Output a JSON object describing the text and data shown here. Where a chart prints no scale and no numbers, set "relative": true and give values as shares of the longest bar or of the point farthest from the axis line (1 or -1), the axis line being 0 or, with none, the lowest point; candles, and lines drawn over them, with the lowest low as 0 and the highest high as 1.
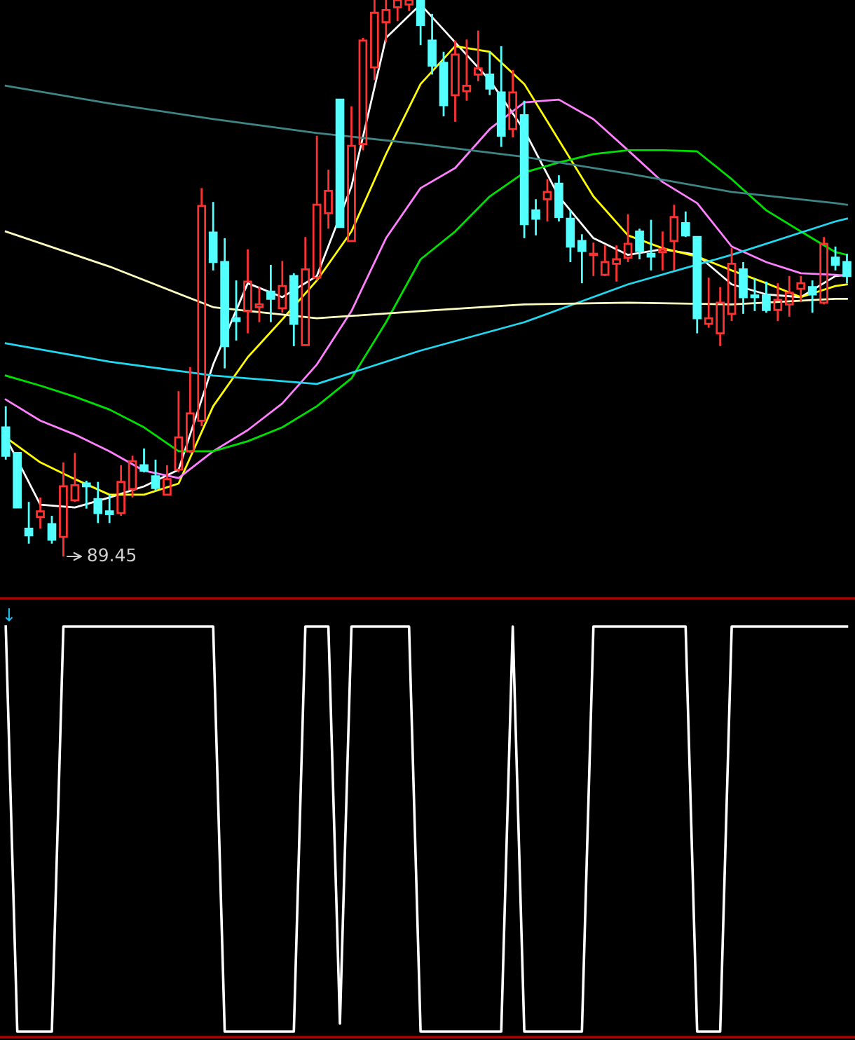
{
  "chart_data": [
    {
      "type": "candlestick",
      "relative": true,
      "categories": [
        null,
        null,
        null,
        null,
        null,
        null,
        null,
        null,
        null,
        null,
        null,
        null,
        null,
        null,
        null,
        null,
        null,
        null,
        null,
        null,
        null,
        null,
        null,
        null,
        null,
        null,
        null,
        null,
        null,
        null,
        null,
        null,
        null,
        null,
        null,
        null,
        null,
        null,
        null,
        null,
        null,
        null,
        null,
        null,
        null,
        null,
        null,
        null,
        null,
        null,
        null,
        null,
        null,
        null,
        null,
        null,
        null,
        null,
        null,
        null,
        null,
        null,
        null,
        null,
        null,
        null,
        null,
        null,
        null,
        null,
        null,
        null,
        null,
        null
      ],
      "ohlc": [
        [
          0.232,
          0.27,
          0.174,
          0.181
        ],
        [
          0.186,
          0.186,
          0.088,
          0.088
        ],
        [
          0.05,
          0.098,
          0.023,
          0.038
        ],
        [
          0.071,
          0.106,
          0.05,
          0.081
        ],
        [
          0.058,
          0.073,
          0.023,
          0.03
        ],
        [
          0.035,
          0.169,
          0,
          0.126
        ],
        [
          0.101,
          0.186,
          0.098,
          0.128
        ],
        [
          0.131,
          0.136,
          0.086,
          0.126
        ],
        [
          0.103,
          0.134,
          0.06,
          0.078
        ],
        [
          0.081,
          0.111,
          0.06,
          0.076
        ],
        [
          0.078,
          0.164,
          0.073,
          0.134
        ],
        [
          0.121,
          0.181,
          0.106,
          0.171
        ],
        [
          0.164,
          0.194,
          0.151,
          0.154
        ],
        [
          0.144,
          0.174,
          0.118,
          0.123
        ],
        [
          0.111,
          0.164,
          0.111,
          0.139
        ],
        [
          0.156,
          0.297,
          0.151,
          0.214
        ],
        [
          0.189,
          0.34,
          0.186,
          0.257
        ],
        [
          0.244,
          0.662,
          0.234,
          0.63
        ],
        [
          0.582,
          0.637,
          0.514,
          0.529
        ],
        [
          0.529,
          0.572,
          0.338,
          0.378
        ],
        [
          0.428,
          0.496,
          0.388,
          0.423
        ],
        [
          0.441,
          0.552,
          0.401,
          0.494
        ],
        [
          0.448,
          0.484,
          0.421,
          0.453
        ],
        [
          0.476,
          0.524,
          0.421,
          0.463
        ],
        [
          0.446,
          0.531,
          0.438,
          0.486
        ],
        [
          0.504,
          0.509,
          0.378,
          0.418
        ],
        [
          0.38,
          0.574,
          0.38,
          0.516
        ],
        [
          0.501,
          0.756,
          0.496,
          0.632
        ],
        [
          0.617,
          0.695,
          0.589,
          0.657
        ],
        [
          0.821,
          0.821,
          0.592,
          0.592
        ],
        [
          0.567,
          0.809,
          0.567,
          0.738
        ],
        [
          0.741,
          0.932,
          0.73,
          0.927
        ],
        [
          0.879,
          1,
          0.856,
          0.977
        ],
        [
          0.96,
          1,
          0.924,
          0.982
        ],
        [
          0.987,
          1,
          0.962,
          1
        ],
        [
          0.992,
          1,
          0.98,
          1
        ],
        [
          1,
          1,
          0.919,
          0.955
        ],
        [
          0.927,
          0.975,
          0.866,
          0.882
        ],
        [
          0.887,
          0.907,
          0.791,
          0.811
        ],
        [
          0.829,
          0.927,
          0.781,
          0.902
        ],
        [
          0.836,
          0.929,
          0.819,
          0.846
        ],
        [
          0.866,
          0.945,
          0.854,
          0.877
        ],
        [
          0.866,
          0.907,
          0.829,
          0.841
        ],
        [
          0.834,
          0.917,
          0.736,
          0.756
        ],
        [
          0.768,
          0.874,
          0.753,
          0.834
        ],
        [
          0.793,
          0.819,
          0.572,
          0.597
        ],
        [
          0.622,
          0.642,
          0.577,
          0.607
        ],
        [
          0.642,
          0.678,
          0.602,
          0.655
        ],
        [
          0.67,
          0.685,
          0.602,
          0.61
        ],
        [
          0.607,
          0.622,
          0.529,
          0.557
        ],
        [
          0.567,
          0.579,
          0.491,
          0.549
        ],
        [
          0.542,
          0.564,
          0.504,
          0.544
        ],
        [
          0.506,
          0.559,
          0.504,
          0.529
        ],
        [
          0.526,
          0.559,
          0.494,
          0.534
        ],
        [
          0.537,
          0.615,
          0.529,
          0.562
        ],
        [
          0.584,
          0.589,
          0.534,
          0.549
        ],
        [
          0.544,
          0.605,
          0.514,
          0.539
        ],
        [
          0.547,
          0.584,
          0.514,
          0.552
        ],
        [
          0.567,
          0.632,
          0.514,
          0.61
        ],
        [
          0.599,
          0.62,
          0.574,
          0.577
        ],
        [
          0.574,
          0.574,
          0.401,
          0.428
        ],
        [
          0.418,
          0.501,
          0.411,
          0.428
        ],
        [
          0.401,
          0.484,
          0.378,
          0.456
        ],
        [
          0.436,
          0.554,
          0.423,
          0.526
        ],
        [
          0.516,
          0.529,
          0.436,
          0.466
        ],
        [
          0.469,
          0.499,
          0.441,
          0.466
        ],
        [
          0.469,
          0.494,
          0.438,
          0.443
        ],
        [
          0.443,
          0.491,
          0.423,
          0.461
        ],
        [
          0.453,
          0.504,
          0.431,
          0.474
        ],
        [
          0.481,
          0.504,
          0.458,
          0.491
        ],
        [
          0.484,
          0.496,
          0.438,
          0.471
        ],
        [
          0.456,
          0.574,
          0.453,
          0.562
        ],
        [
          0.537,
          0.557,
          0.514,
          0.524
        ],
        [
          0.529,
          0.544,
          0.491,
          0.504
        ]
      ],
      "colors": [
        "#54ffff",
        "#54ffff",
        "#54ffff",
        "#ff3232",
        "#54ffff",
        "#ff3232",
        "#ff3232",
        "#54ffff",
        "#54ffff",
        "#54ffff",
        "#ff3232",
        "#ff3232",
        "#54ffff",
        "#54ffff",
        "#ff3232",
        "#ff3232",
        "#ff3232",
        "#ff3232",
        "#54ffff",
        "#54ffff",
        "#54ffff",
        "#ff3232",
        "#ff3232",
        "#54ffff",
        "#ff3232",
        "#54ffff",
        "#ff3232",
        "#ff3232",
        "#ff3232",
        "#54ffff",
        "#ff3232",
        "#ff3232",
        "#ff3232",
        "#ff3232",
        "#ff3232",
        "#ff3232",
        "#54ffff",
        "#54ffff",
        "#54ffff",
        "#ff3232",
        "#ff3232",
        "#ff3232",
        "#54ffff",
        "#54ffff",
        "#ff3232",
        "#54ffff",
        "#54ffff",
        "#ff3232",
        "#54ffff",
        "#54ffff",
        "#54ffff",
        "#ff3232",
        "#ff3232",
        "#ff3232",
        "#ff3232",
        "#54ffff",
        "#54ffff",
        "#ff3232",
        "#ff3232",
        "#54ffff",
        "#54ffff",
        "#ff3232",
        "#ff3232",
        "#ff3232",
        "#54ffff",
        "#54ffff",
        "#54ffff",
        "#ff3232",
        "#ff3232",
        "#ff3232",
        "#54ffff",
        "#ff3232",
        "#54ffff",
        "#54ffff"
      ],
      "series": [
        {
          "type": "line",
          "color": "#ffffff",
          "values": [
            0.214,
            null,
            null,
            0.093,
            null,
            null,
            0.088,
            null,
            null,
            0.106,
            null,
            null,
            0.126,
            null,
            null,
            0.156,
            null,
            null,
            0.345,
            null,
            null,
            0.491,
            null,
            null,
            0.466,
            null,
            null,
            0.504,
            null,
            null,
            0.665,
            null,
            null,
            0.932,
            null,
            null,
            0.992,
            null,
            null,
            0.924,
            null,
            null,
            0.856,
            null,
            null,
            0.766,
            null,
            null,
            0.647,
            null,
            null,
            0.572,
            null,
            null,
            0.542,
            null,
            null,
            0.552,
            null,
            null,
            0.542,
            null,
            null,
            0.489,
            null,
            null,
            0.471,
            null,
            null,
            0.466,
            null,
            null,
            0.504,
            0.506
          ]
        },
        {
          "type": "line",
          "color": "#ffff00",
          "values": [
            0.214,
            null,
            null,
            0.169,
            null,
            null,
            0.139,
            null,
            null,
            0.111,
            null,
            null,
            0.111,
            null,
            null,
            0.131,
            null,
            null,
            0.27,
            null,
            null,
            0.358,
            null,
            null,
            0.426,
            null,
            null,
            0.496,
            null,
            null,
            0.584,
            null,
            null,
            0.723,
            null,
            null,
            0.849,
            null,
            null,
            0.917,
            null,
            null,
            0.907,
            null,
            null,
            0.849,
            null,
            null,
            0.748,
            null,
            null,
            0.647,
            null,
            null,
            0.577,
            null,
            null,
            0.554,
            null,
            null,
            0.539,
            null,
            null,
            0.514,
            null,
            null,
            0.491,
            null,
            null,
            0.466,
            null,
            null,
            0.486,
            0.489
          ]
        },
        {
          "type": "line",
          "color": "#ff80ff",
          "values": [
            0.282,
            null,
            null,
            0.244,
            null,
            null,
            0.219,
            null,
            null,
            0.189,
            null,
            null,
            0.154,
            null,
            null,
            0.141,
            null,
            null,
            0.189,
            null,
            null,
            0.227,
            null,
            null,
            0.275,
            null,
            null,
            0.345,
            null,
            null,
            0.441,
            null,
            null,
            0.572,
            null,
            null,
            0.662,
            null,
            null,
            0.698,
            null,
            null,
            0.768,
            null,
            null,
            0.816,
            null,
            null,
            0.821,
            null,
            null,
            0.786,
            null,
            null,
            0.73,
            null,
            null,
            0.673,
            null,
            null,
            0.635,
            null,
            null,
            0.557,
            null,
            null,
            0.529,
            null,
            null,
            0.509,
            null,
            null,
            0.506,
            0.504
          ]
        },
        {
          "type": "line",
          "color": "#00e000",
          "values": [
            0.325,
            null,
            null,
            0.307,
            null,
            null,
            0.287,
            null,
            null,
            0.264,
            null,
            null,
            0.232,
            null,
            null,
            0.189,
            null,
            null,
            0.189,
            null,
            null,
            0.207,
            null,
            null,
            0.232,
            null,
            null,
            0.27,
            null,
            null,
            0.32,
            null,
            null,
            0.421,
            null,
            null,
            0.534,
            null,
            null,
            0.584,
            null,
            null,
            0.647,
            null,
            null,
            0.69,
            null,
            null,
            0.708,
            null,
            null,
            0.723,
            null,
            null,
            0.73,
            null,
            null,
            0.73,
            null,
            null,
            0.728,
            null,
            null,
            0.678,
            null,
            null,
            0.622,
            null,
            null,
            0.584,
            null,
            null,
            0.547,
            0.542
          ]
        },
        {
          "type": "line",
          "color": "#22d8f0",
          "values": [
            0.383,
            null,
            null,
            null,
            null,
            null,
            null,
            null,
            null,
            0.35,
            null,
            null,
            null,
            null,
            null,
            null,
            null,
            null,
            0.325,
            null,
            null,
            null,
            null,
            null,
            null,
            null,
            null,
            0.31,
            null,
            null,
            null,
            null,
            null,
            null,
            null,
            null,
            0.37,
            null,
            null,
            null,
            null,
            null,
            null,
            null,
            null,
            0.421,
            null,
            null,
            null,
            null,
            null,
            null,
            null,
            null,
            0.489,
            null,
            null,
            null,
            null,
            null,
            null,
            null,
            null,
            0.542,
            null,
            null,
            null,
            null,
            null,
            null,
            null,
            null,
            0.602,
            0.607
          ]
        },
        {
          "type": "line",
          "color": "#3f8585",
          "values": [
            0.846,
            null,
            null,
            null,
            null,
            null,
            null,
            null,
            null,
            0.814,
            null,
            null,
            null,
            null,
            null,
            null,
            null,
            null,
            0.786,
            null,
            null,
            null,
            null,
            null,
            null,
            null,
            null,
            0.761,
            null,
            null,
            null,
            null,
            null,
            null,
            null,
            null,
            0.741,
            null,
            null,
            null,
            null,
            null,
            null,
            null,
            null,
            0.718,
            null,
            null,
            null,
            null,
            null,
            null,
            null,
            null,
            0.688,
            null,
            null,
            null,
            null,
            null,
            null,
            null,
            null,
            0.655,
            null,
            null,
            null,
            null,
            null,
            null,
            null,
            null,
            0.635,
            0.632
          ]
        },
        {
          "type": "line",
          "color": "#ffffc0",
          "values": [
            0.584,
            null,
            null,
            null,
            null,
            null,
            null,
            null,
            null,
            0.521,
            null,
            null,
            null,
            null,
            null,
            null,
            null,
            null,
            0.448,
            null,
            null,
            null,
            null,
            null,
            null,
            null,
            null,
            0.428,
            null,
            null,
            null,
            null,
            null,
            null,
            null,
            null,
            0.441,
            null,
            null,
            null,
            null,
            null,
            null,
            null,
            null,
            0.453,
            null,
            null,
            null,
            null,
            null,
            null,
            null,
            null,
            0.456,
            null,
            null,
            null,
            null,
            null,
            null,
            null,
            null,
            0.453,
            null,
            null,
            null,
            null,
            null,
            null,
            null,
            null,
            0.463,
            0.463
          ]
        }
      ],
      "annotations": [
        "89.45"
      ]
    },
    {
      "type": "line",
      "relative": true,
      "categories": [
        null,
        null,
        null,
        null,
        null,
        null,
        null,
        null,
        null,
        null,
        null,
        null,
        null,
        null,
        null,
        null,
        null,
        null,
        null,
        null,
        null,
        null,
        null,
        null,
        null,
        null,
        null,
        null,
        null,
        null,
        null,
        null,
        null,
        null,
        null,
        null,
        null,
        null,
        null,
        null,
        null,
        null,
        null,
        null,
        null,
        null,
        null,
        null,
        null,
        null,
        null,
        null,
        null,
        null,
        null,
        null,
        null,
        null,
        null,
        null,
        null,
        null,
        null,
        null,
        null,
        null,
        null,
        null,
        null,
        null,
        null,
        null,
        null,
        null
      ],
      "series": [
        {
          "color": "#ffffff",
          "values": [
            1,
            0,
            0,
            0,
            0,
            1,
            1,
            1,
            1,
            1,
            1,
            1,
            1,
            1,
            1,
            1,
            1,
            1,
            1,
            0,
            0,
            0,
            0,
            0,
            0,
            0,
            1,
            1,
            1,
            0.02,
            1,
            1,
            1,
            1,
            1,
            1,
            0,
            0,
            0,
            0,
            0,
            0,
            0,
            0,
            1,
            0,
            0,
            0,
            0,
            0,
            0,
            1,
            1,
            1,
            1,
            1,
            1,
            1,
            1,
            1,
            0,
            0,
            0,
            1,
            1,
            1,
            1,
            1,
            1,
            1,
            1,
            1,
            1,
            1
          ]
        }
      ],
      "annotations": [
        "↓"
      ]
    }
  ]
}
